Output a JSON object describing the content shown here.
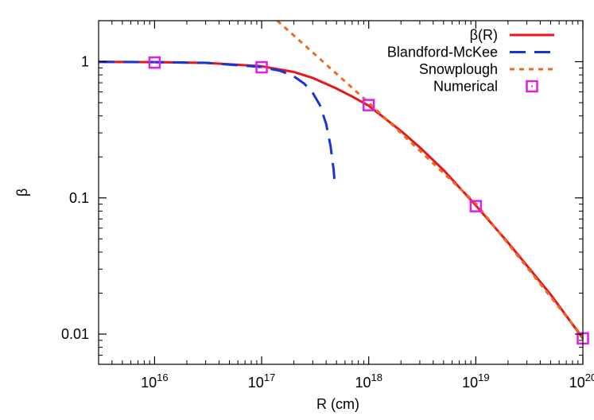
{
  "chart_data": {
    "type": "line",
    "x_scale": "log",
    "y_scale": "log",
    "xlabel": "R (cm)",
    "ylabel": "β",
    "xlim": [
      3000000000000000.0,
      1e+20
    ],
    "ylim": [
      0.006,
      2
    ],
    "grid": false,
    "legend_position": "top-right",
    "x_ticks": [
      {
        "value": 1e+16,
        "base": "10",
        "exp": "16"
      },
      {
        "value": 1e+17,
        "base": "10",
        "exp": "17"
      },
      {
        "value": 1e+18,
        "base": "10",
        "exp": "18"
      },
      {
        "value": 1e+19,
        "base": "10",
        "exp": "19"
      },
      {
        "value": 1e+20,
        "base": "10",
        "exp": "20"
      }
    ],
    "y_ticks": [
      {
        "value": 1,
        "label": "1"
      },
      {
        "value": 0.1,
        "label": "0.1"
      },
      {
        "value": 0.01,
        "label": "0.01"
      }
    ],
    "series": [
      {
        "name": "β(R)",
        "style": "solid",
        "color": "#e8161b",
        "x": [
          3000000000000000.0,
          1e+16,
          3e+16,
          1e+17,
          2e+17,
          3e+17,
          5e+17,
          7e+17,
          1e+18,
          2e+18,
          3e+18,
          5e+18,
          1e+19,
          2e+19,
          5e+19,
          1e+20
        ],
        "y": [
          0.998,
          0.993,
          0.98,
          0.925,
          0.84,
          0.76,
          0.635,
          0.555,
          0.475,
          0.31,
          0.235,
          0.16,
          0.088,
          0.047,
          0.0195,
          0.0093
        ]
      },
      {
        "name": "Blandford-McKee",
        "style": "dashed",
        "color": "#1a35d6",
        "x": [
          3000000000000000.0,
          1e+16,
          3e+16,
          1e+17,
          1.5e+17,
          2e+17,
          2.5e+17,
          3e+17,
          3.5e+17,
          4e+17,
          4.4e+17,
          4.7e+17,
          4.85e+17
        ],
        "y": [
          0.998,
          0.993,
          0.98,
          0.915,
          0.855,
          0.78,
          0.69,
          0.59,
          0.48,
          0.35,
          0.24,
          0.16,
          0.12
        ]
      },
      {
        "name": "Snowplough",
        "style": "dotted",
        "color": "#f06a1e",
        "x": [
          1.4e+17,
          1e+18,
          1e+19,
          1e+20
        ],
        "y": [
          2.0,
          0.5,
          0.091,
          0.0095
        ]
      },
      {
        "name": "Numerical",
        "style": "markers",
        "color": "#e11de8",
        "x": [
          1e+16,
          1e+17,
          1e+18,
          1e+19,
          1e+20
        ],
        "y": [
          0.985,
          0.91,
          0.48,
          0.087,
          0.0093
        ]
      }
    ]
  }
}
